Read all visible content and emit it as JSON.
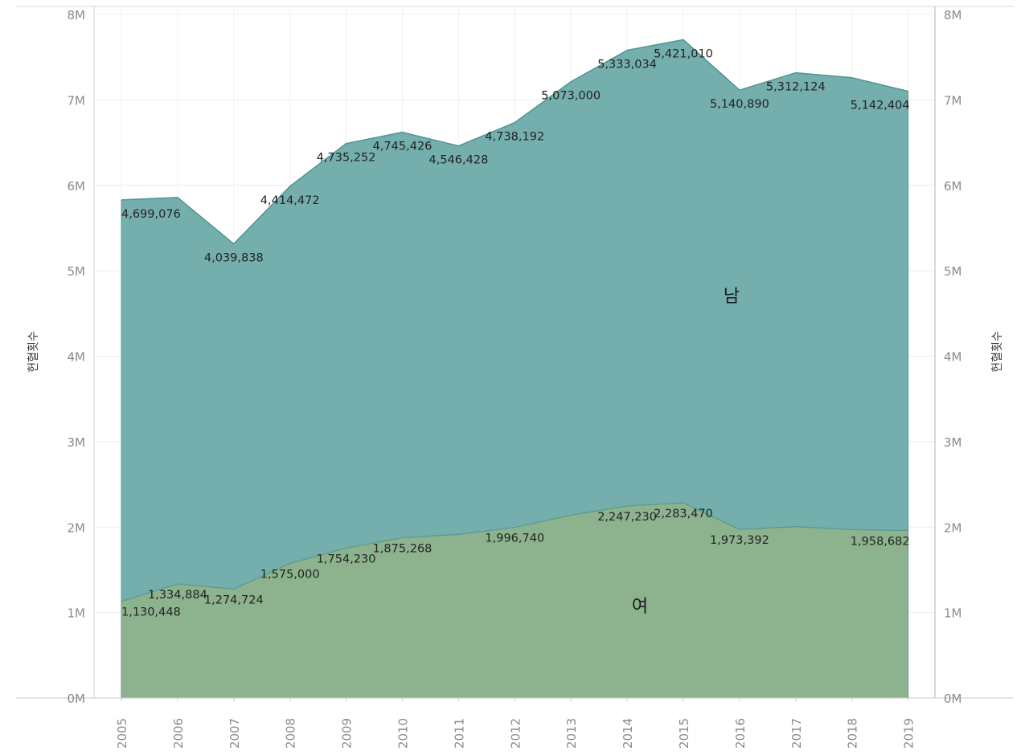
{
  "chart_data": {
    "type": "area",
    "stacked": true,
    "categories": [
      "2005",
      "2006",
      "2007",
      "2008",
      "2009",
      "2010",
      "2011",
      "2012",
      "2013",
      "2014",
      "2015",
      "2016",
      "2017",
      "2018",
      "2019"
    ],
    "series": [
      {
        "name": "여",
        "color": "#8db38e",
        "values": [
          1130448,
          1334884,
          1274724,
          1575000,
          1754230,
          1875268,
          1915000,
          1996740,
          2140000,
          2247230,
          2283470,
          1973392,
          2005000,
          1970000,
          1958682
        ]
      },
      {
        "name": "남",
        "color": "#74afad",
        "values": [
          4699076,
          4523000,
          4039838,
          4414472,
          4735252,
          4745426,
          4546428,
          4738192,
          5073000,
          5333034,
          5421010,
          5140890,
          5312124,
          5290000,
          5142404
        ]
      }
    ],
    "point_labels": {
      "여": [
        {
          "index": 0,
          "text": "1,130,448"
        },
        {
          "index": 1,
          "text": "1,334,884"
        },
        {
          "index": 2,
          "text": "1,274,724"
        },
        {
          "index": 3,
          "text": "1,575,000"
        },
        {
          "index": 4,
          "text": "1,754,230"
        },
        {
          "index": 5,
          "text": "1,875,268"
        },
        {
          "index": 7,
          "text": "1,996,740"
        },
        {
          "index": 9,
          "text": "2,247,230"
        },
        {
          "index": 10,
          "text": "2,283,470"
        },
        {
          "index": 11,
          "text": "1,973,392"
        },
        {
          "index": 14,
          "text": "1,958,682"
        }
      ],
      "남": [
        {
          "index": 0,
          "text": "4,699,076"
        },
        {
          "index": 2,
          "text": "4,039,838"
        },
        {
          "index": 3,
          "text": "4,414,472"
        },
        {
          "index": 4,
          "text": "4,735,252"
        },
        {
          "index": 5,
          "text": "4,745,426"
        },
        {
          "index": 6,
          "text": "4,546,428"
        },
        {
          "index": 7,
          "text": "4,738,192"
        },
        {
          "index": 8,
          "text": "5,073,000"
        },
        {
          "index": 9,
          "text": "5,333,034"
        },
        {
          "index": 10,
          "text": "5,421,010"
        },
        {
          "index": 11,
          "text": "5,140,890"
        },
        {
          "index": 12,
          "text": "5,312,124"
        },
        {
          "index": 14,
          "text": "5,142,404"
        }
      ]
    },
    "ylabel_left": "헌혈횟수",
    "ylabel_right": "헌혈횟수",
    "ylim": [
      0,
      8000000
    ],
    "yticks": [
      "0M",
      "1M",
      "2M",
      "3M",
      "4M",
      "5M",
      "6M",
      "7M",
      "8M"
    ],
    "grid": true,
    "legend": "inline"
  }
}
